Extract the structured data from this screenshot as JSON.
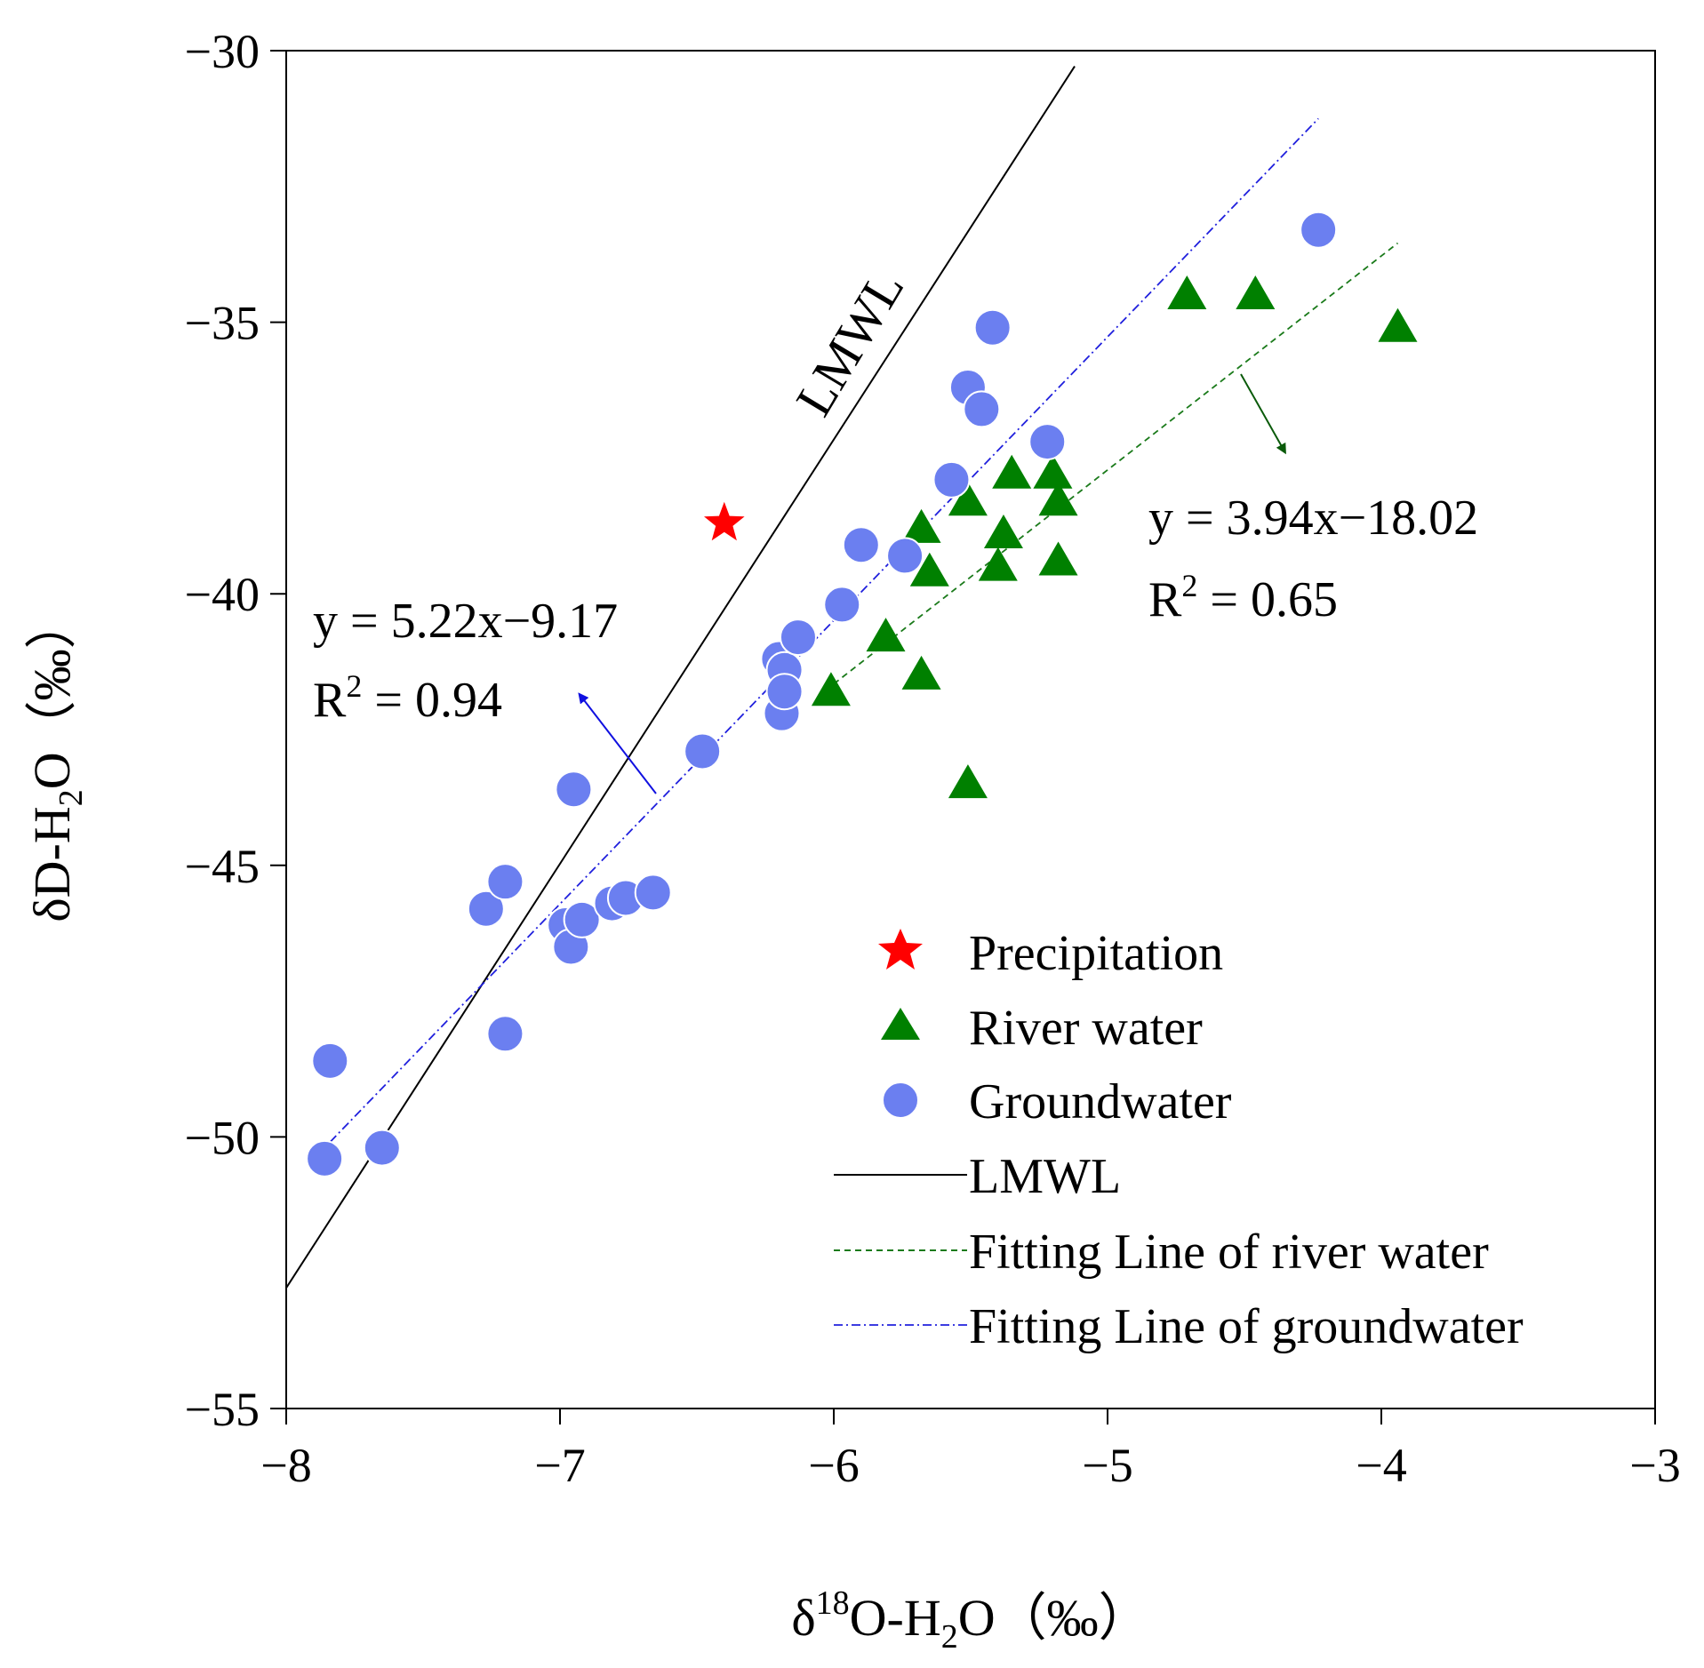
{
  "chart_data": {
    "type": "scatter",
    "x_axis": {
      "label_prefix": "δ",
      "label_sup": "18",
      "label_mid": "O-H",
      "label_sub": "2",
      "label_suffix": "O（‰）",
      "range": [
        -8,
        -3
      ],
      "ticks": [
        -8,
        -7,
        -6,
        -5,
        -4,
        -3
      ],
      "tick_labels": [
        "−8",
        "−7",
        "−6",
        "−5",
        "−4",
        "−3"
      ]
    },
    "y_axis": {
      "label_prefix": "δD-H",
      "label_sub": "2",
      "label_suffix": "O（‰）",
      "range": [
        -55,
        -30
      ],
      "ticks": [
        -55,
        -50,
        -45,
        -40,
        -35,
        -30
      ],
      "tick_labels": [
        "−55",
        "−50",
        "−45",
        "−40",
        "−35",
        "−30"
      ]
    },
    "series": [
      {
        "name": "Precipitation",
        "marker": "star",
        "color": "#ff0000",
        "points": [
          [
            -6.4,
            -38.7
          ]
        ]
      },
      {
        "name": "River water",
        "marker": "triangle",
        "color": "#008000",
        "points": [
          [
            -6.01,
            -41.8
          ],
          [
            -5.81,
            -40.8
          ],
          [
            -5.68,
            -41.5
          ],
          [
            -5.68,
            -38.8
          ],
          [
            -5.65,
            -39.6
          ],
          [
            -5.51,
            -38.3
          ],
          [
            -5.51,
            -43.5
          ],
          [
            -5.4,
            -39.5
          ],
          [
            -5.38,
            -38.9
          ],
          [
            -5.35,
            -37.8
          ],
          [
            -5.2,
            -37.8
          ],
          [
            -5.18,
            -38.3
          ],
          [
            -5.18,
            -39.4
          ],
          [
            -4.71,
            -34.5
          ],
          [
            -4.46,
            -34.5
          ],
          [
            -3.94,
            -35.1
          ]
        ]
      },
      {
        "name": "Groundwater",
        "marker": "circle",
        "color": "#6b7ff0",
        "points": [
          [
            -7.86,
            -50.4
          ],
          [
            -7.84,
            -48.6
          ],
          [
            -7.65,
            -50.2
          ],
          [
            -7.27,
            -45.8
          ],
          [
            -7.2,
            -45.3
          ],
          [
            -7.2,
            -48.1
          ],
          [
            -6.98,
            -46.1
          ],
          [
            -6.96,
            -46.5
          ],
          [
            -6.95,
            -43.6
          ],
          [
            -6.92,
            -46.0
          ],
          [
            -6.81,
            -45.7
          ],
          [
            -6.76,
            -45.6
          ],
          [
            -6.66,
            -45.5
          ],
          [
            -6.48,
            -42.9
          ],
          [
            -6.2,
            -41.2
          ],
          [
            -6.19,
            -42.2
          ],
          [
            -6.18,
            -41.4
          ],
          [
            -6.18,
            -41.8
          ],
          [
            -6.13,
            -40.8
          ],
          [
            -5.97,
            -40.2
          ],
          [
            -5.9,
            -39.1
          ],
          [
            -5.74,
            -39.3
          ],
          [
            -5.57,
            -37.9
          ],
          [
            -5.51,
            -36.2
          ],
          [
            -5.46,
            -36.6
          ],
          [
            -5.42,
            -35.1
          ],
          [
            -5.22,
            -37.2
          ],
          [
            -4.23,
            -33.3
          ]
        ]
      },
      {
        "name": "LMWL",
        "type": "line",
        "color": "#000000",
        "style": "solid",
        "slope": 7.81,
        "intercept": 9.7,
        "x_start": -8.0,
        "x_end": -5.12
      },
      {
        "name": "Fitting Line of river water",
        "type": "line",
        "color": "#1a7a1a",
        "style": "dashed",
        "slope": 3.94,
        "intercept": -18.02,
        "x_start": -6.0,
        "x_end": -3.94
      },
      {
        "name": "Fitting Line of groundwater",
        "type": "line",
        "color": "#2020dd",
        "style": "dashdot",
        "slope": 5.22,
        "intercept": -9.17,
        "x_start": -7.84,
        "x_end": -4.23
      }
    ],
    "annotations": {
      "lmwl_label": "LMWL",
      "groundwater_eq": "y = 5.22x−9.17",
      "groundwater_r2_prefix": "R",
      "groundwater_r2_sup": "2",
      "groundwater_r2_suffix": " = 0.94",
      "river_eq": "y = 3.94x−18.02",
      "river_r2_prefix": "R",
      "river_r2_sup": "2",
      "river_r2_suffix": " = 0.65"
    },
    "legend": {
      "position": "bottom-right",
      "entries": [
        "Precipitation",
        "River water",
        "Groundwater",
        "LMWL",
        "Fitting Line of river water",
        "Fitting Line of groundwater"
      ]
    }
  }
}
